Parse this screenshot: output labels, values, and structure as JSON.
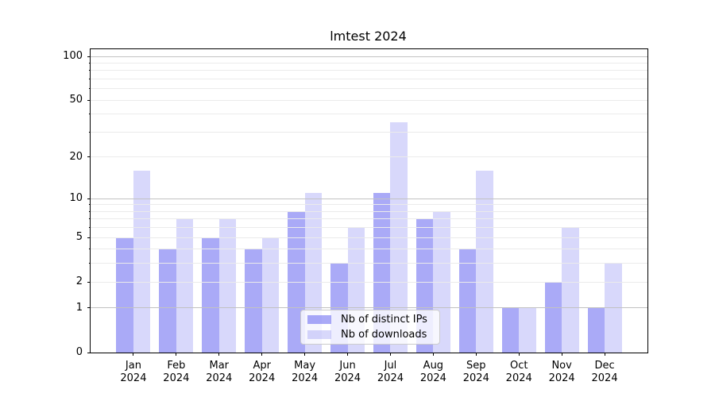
{
  "figure": {
    "background_color": "#ffffff",
    "axis_color": "#000000"
  },
  "chart_data": {
    "type": "bar",
    "title": "lmtest 2024",
    "categories": [
      "Jan",
      "Feb",
      "Mar",
      "Apr",
      "May",
      "Jun",
      "Jul",
      "Aug",
      "Sep",
      "Oct",
      "Nov",
      "Dec"
    ],
    "year_label": "2024",
    "series": [
      {
        "name": "Nb of distinct IPs",
        "color": "#6464f0",
        "alpha": 0.55,
        "values": [
          5,
          4,
          5,
          4,
          8,
          3,
          11,
          7,
          4,
          1,
          2,
          1
        ]
      },
      {
        "name": "Nb of downloads",
        "color": "#6464f0",
        "alpha": 0.25,
        "values": [
          16,
          7,
          7,
          5,
          11,
          6,
          35,
          8,
          16,
          1,
          6,
          3
        ]
      }
    ],
    "xlabel": "",
    "ylabel": "",
    "yscale": "log1p",
    "yticks": [
      0,
      1,
      2,
      5,
      10,
      20,
      50,
      100
    ],
    "ylim": [
      0,
      112
    ],
    "grid": true,
    "grid_major_values": [
      1,
      10,
      100
    ],
    "grid_minor_values": [
      2,
      3,
      4,
      5,
      6,
      7,
      8,
      9,
      20,
      30,
      40,
      50,
      60,
      70,
      80,
      90
    ],
    "grid_major_color": "#c2c2c2",
    "grid_minor_color": "#ebebeb",
    "legend_position": "lower center"
  }
}
